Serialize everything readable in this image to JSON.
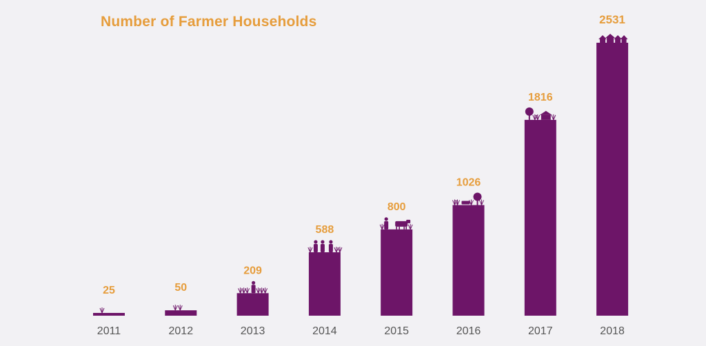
{
  "chart_data": {
    "type": "bar",
    "title": "Number of Farmer Households",
    "categories": [
      "2011",
      "2012",
      "2013",
      "2014",
      "2015",
      "2016",
      "2017",
      "2018"
    ],
    "values": [
      25,
      50,
      209,
      588,
      800,
      1026,
      1816,
      2531
    ],
    "value_labels": [
      "25",
      "50",
      "209",
      "588",
      "800",
      "1026",
      "1816",
      "2531"
    ],
    "xlabel": "",
    "ylabel": "",
    "ylim": [
      0,
      2531
    ],
    "grid": false,
    "legend": "none",
    "bar_icons": [
      "sprout-icon",
      "sprouts-icon",
      "farmer-icon",
      "farmers-icon",
      "farmer-cow-icon",
      "farm-tree-icon",
      "farmhouse-icon",
      "village-icon"
    ]
  },
  "colors": {
    "background": "#f2f1f4",
    "bar": "#6d1568",
    "value_label": "#e69d3c",
    "title": "#e69d3c",
    "tick_label": "#555555"
  }
}
